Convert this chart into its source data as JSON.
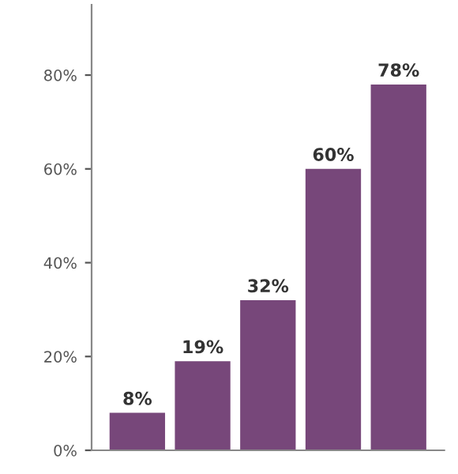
{
  "chart_data": {
    "type": "bar",
    "categories": [
      null,
      null,
      null,
      null,
      null
    ],
    "values": [
      8,
      19,
      32,
      60,
      78
    ],
    "value_labels": [
      "8%",
      "19%",
      "32%",
      "60%",
      "78%"
    ],
    "color": "#77477a",
    "ylim": [
      0,
      95
    ],
    "yticks": [
      {
        "value": 0,
        "label": "0%"
      },
      {
        "value": 20,
        "label": "20%"
      },
      {
        "value": 40,
        "label": "40%"
      },
      {
        "value": 60,
        "label": "60%"
      },
      {
        "value": 80,
        "label": "80%"
      }
    ],
    "grid": false,
    "legend": false
  }
}
